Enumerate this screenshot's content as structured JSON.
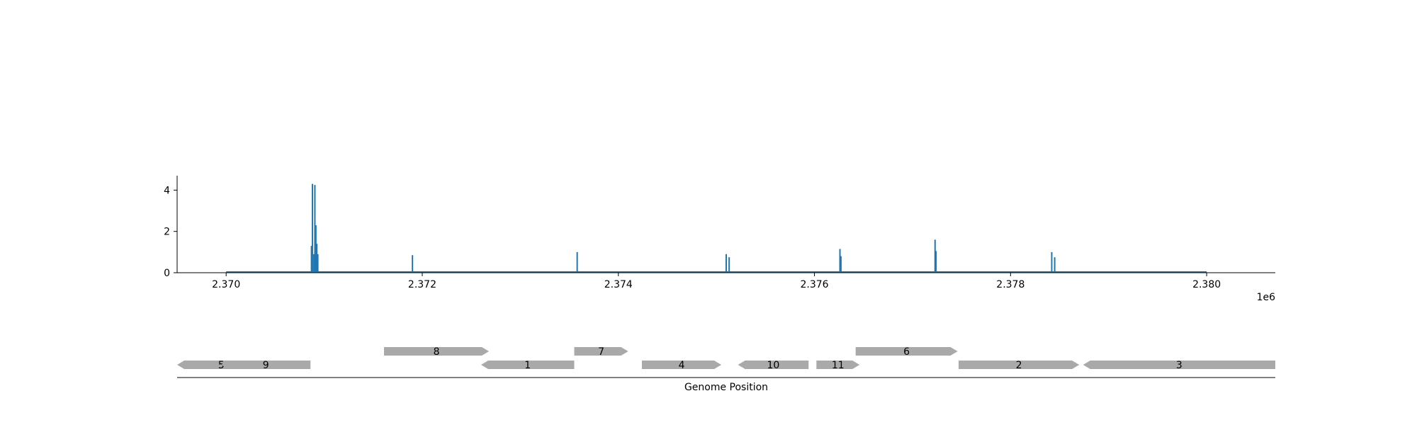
{
  "chart_data": [
    {
      "type": "line",
      "title": "",
      "xlabel": "",
      "ylabel": "",
      "x_offset_label": "1e6",
      "xlim": [
        2369500,
        2380700
      ],
      "ylim": [
        0,
        4.7
      ],
      "x_ticks": [
        2370000,
        2372000,
        2374000,
        2376000,
        2378000,
        2380000
      ],
      "x_tick_labels": [
        "2.370",
        "2.372",
        "2.374",
        "2.376",
        "2.378",
        "2.380"
      ],
      "y_ticks": [
        0,
        2,
        4
      ],
      "y_tick_labels": [
        "0",
        "2",
        "4"
      ],
      "color": "#1f77b4",
      "grid": false,
      "baseline_range": [
        2370000,
        2380000
      ],
      "peaks": [
        {
          "x": 2370870,
          "y": 1.3
        },
        {
          "x": 2370880,
          "y": 4.3
        },
        {
          "x": 2370895,
          "y": 0.9
        },
        {
          "x": 2370905,
          "y": 4.25
        },
        {
          "x": 2370915,
          "y": 2.3
        },
        {
          "x": 2370925,
          "y": 1.4
        },
        {
          "x": 2370935,
          "y": 0.9
        },
        {
          "x": 2371900,
          "y": 0.85
        },
        {
          "x": 2373580,
          "y": 1.0
        },
        {
          "x": 2375100,
          "y": 0.9
        },
        {
          "x": 2375130,
          "y": 0.75
        },
        {
          "x": 2376260,
          "y": 1.15
        },
        {
          "x": 2376270,
          "y": 0.8
        },
        {
          "x": 2377230,
          "y": 1.6
        },
        {
          "x": 2377240,
          "y": 1.05
        },
        {
          "x": 2378420,
          "y": 1.0
        },
        {
          "x": 2378450,
          "y": 0.75
        }
      ]
    },
    {
      "type": "gene-track",
      "xlabel": "Genome Position",
      "xlim": [
        2369500,
        2380700
      ],
      "gene_color": "#a9a9a9",
      "genes": [
        {
          "label": "5",
          "start": 2369500,
          "end": 2370400,
          "strand": "-",
          "row": 0
        },
        {
          "label": "9",
          "start": 2369950,
          "end": 2370860,
          "strand": "-",
          "row": 0
        },
        {
          "label": "8",
          "start": 2371610,
          "end": 2372680,
          "strand": "+",
          "row": 1
        },
        {
          "label": "1",
          "start": 2372600,
          "end": 2373550,
          "strand": "-",
          "row": 0
        },
        {
          "label": "7",
          "start": 2373550,
          "end": 2374100,
          "strand": "+",
          "row": 1
        },
        {
          "label": "4",
          "start": 2374240,
          "end": 2375050,
          "strand": "+",
          "row": 0
        },
        {
          "label": "10",
          "start": 2375220,
          "end": 2375940,
          "strand": "-",
          "row": 0
        },
        {
          "label": "11",
          "start": 2376020,
          "end": 2376460,
          "strand": "+",
          "row": 0
        },
        {
          "label": "6",
          "start": 2376420,
          "end": 2377460,
          "strand": "+",
          "row": 1
        },
        {
          "label": "2",
          "start": 2377470,
          "end": 2378700,
          "strand": "+",
          "row": 0
        },
        {
          "label": "3",
          "start": 2378740,
          "end": 2380700,
          "strand": "-",
          "row": 0
        }
      ]
    }
  ]
}
